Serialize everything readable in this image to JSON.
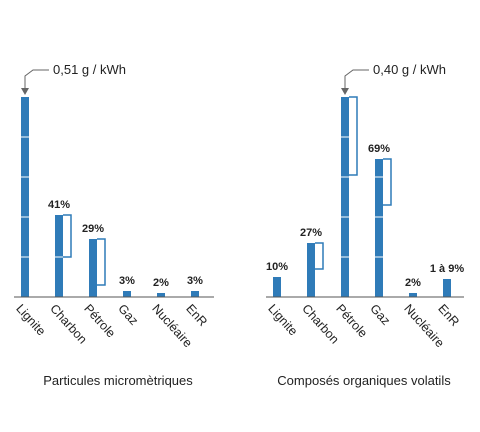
{
  "colors": {
    "bar": "#2f7bb8",
    "axis": "#555555",
    "arrow": "#666666",
    "text": "#222222"
  },
  "chart_data": [
    {
      "type": "bar",
      "title": "Particules micromètriques",
      "categories": [
        "Lignite",
        "Charbon",
        "Pétrole",
        "Gaz",
        "Nucléaire",
        "EnR"
      ],
      "values": [
        100,
        41,
        29,
        3,
        2,
        3
      ],
      "labels": [
        "",
        "41%",
        "29%",
        "3%",
        "2%",
        "3%"
      ],
      "ranges": [
        null,
        [
          20,
          41
        ],
        [
          6,
          29
        ],
        null,
        null,
        null
      ],
      "annotation": {
        "text": "0,51 g / kWh",
        "category": "Lignite"
      },
      "ylim": [
        0,
        100
      ],
      "grid": false,
      "legend": "none"
    },
    {
      "type": "bar",
      "title": "Composés organiques volatils",
      "categories": [
        "Lignite",
        "Charbon",
        "Pétrole",
        "Gaz",
        "Nucléaire",
        "EnR"
      ],
      "values": [
        10,
        27,
        100,
        69,
        2,
        9
      ],
      "labels": [
        "10%",
        "27%",
        "",
        "69%",
        "2%",
        "1 à 9%"
      ],
      "ranges": [
        null,
        [
          14,
          27
        ],
        [
          61,
          100
        ],
        [
          46,
          69
        ],
        null,
        null
      ],
      "annotation": {
        "text": "0,40 g / kWh",
        "category": "Pétrole"
      },
      "ylim": [
        0,
        100
      ],
      "grid": false,
      "legend": "none"
    }
  ]
}
